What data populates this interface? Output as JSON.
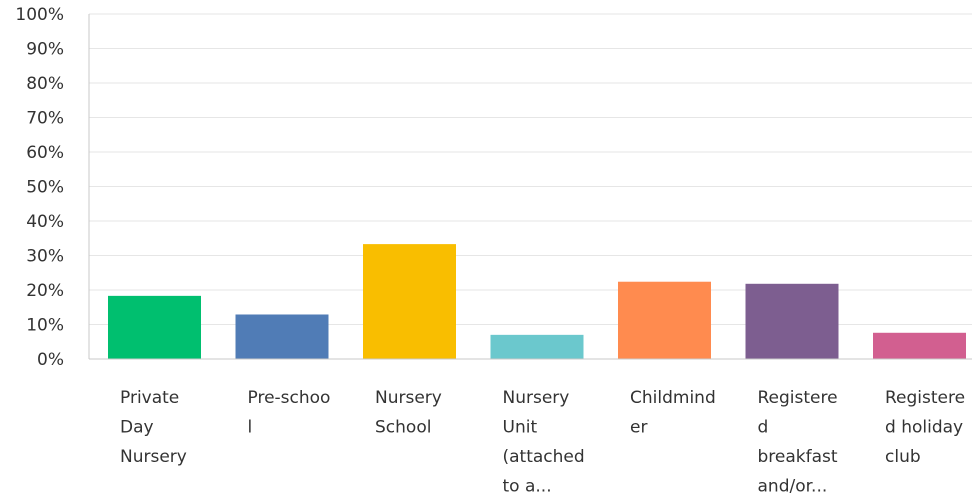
{
  "chart_data": {
    "type": "bar",
    "categories": [
      [
        "Private",
        "Day",
        "Nursery"
      ],
      [
        "Pre-schoo",
        "l"
      ],
      [
        "Nursery",
        "School"
      ],
      [
        "Nursery",
        "Unit",
        "(attached",
        "to a..."
      ],
      [
        "Childmind",
        "er"
      ],
      [
        "Registere",
        "d",
        "breakfast",
        "and/or..."
      ],
      [
        "Registere",
        "d holiday",
        "club"
      ]
    ],
    "values": [
      18.3,
      12.9,
      33.3,
      7.0,
      22.4,
      21.8,
      7.6
    ],
    "colors": [
      "#00bf6f",
      "#507cb6",
      "#f9be00",
      "#6bc8cd",
      "#ff8b4f",
      "#7d5e90",
      "#d25f90"
    ],
    "yticks": [
      "0%",
      "10%",
      "20%",
      "30%",
      "40%",
      "50%",
      "60%",
      "70%",
      "80%",
      "90%",
      "100%"
    ],
    "ylim": [
      0,
      100
    ],
    "grid": true,
    "title": "",
    "xlabel": "",
    "ylabel": ""
  }
}
